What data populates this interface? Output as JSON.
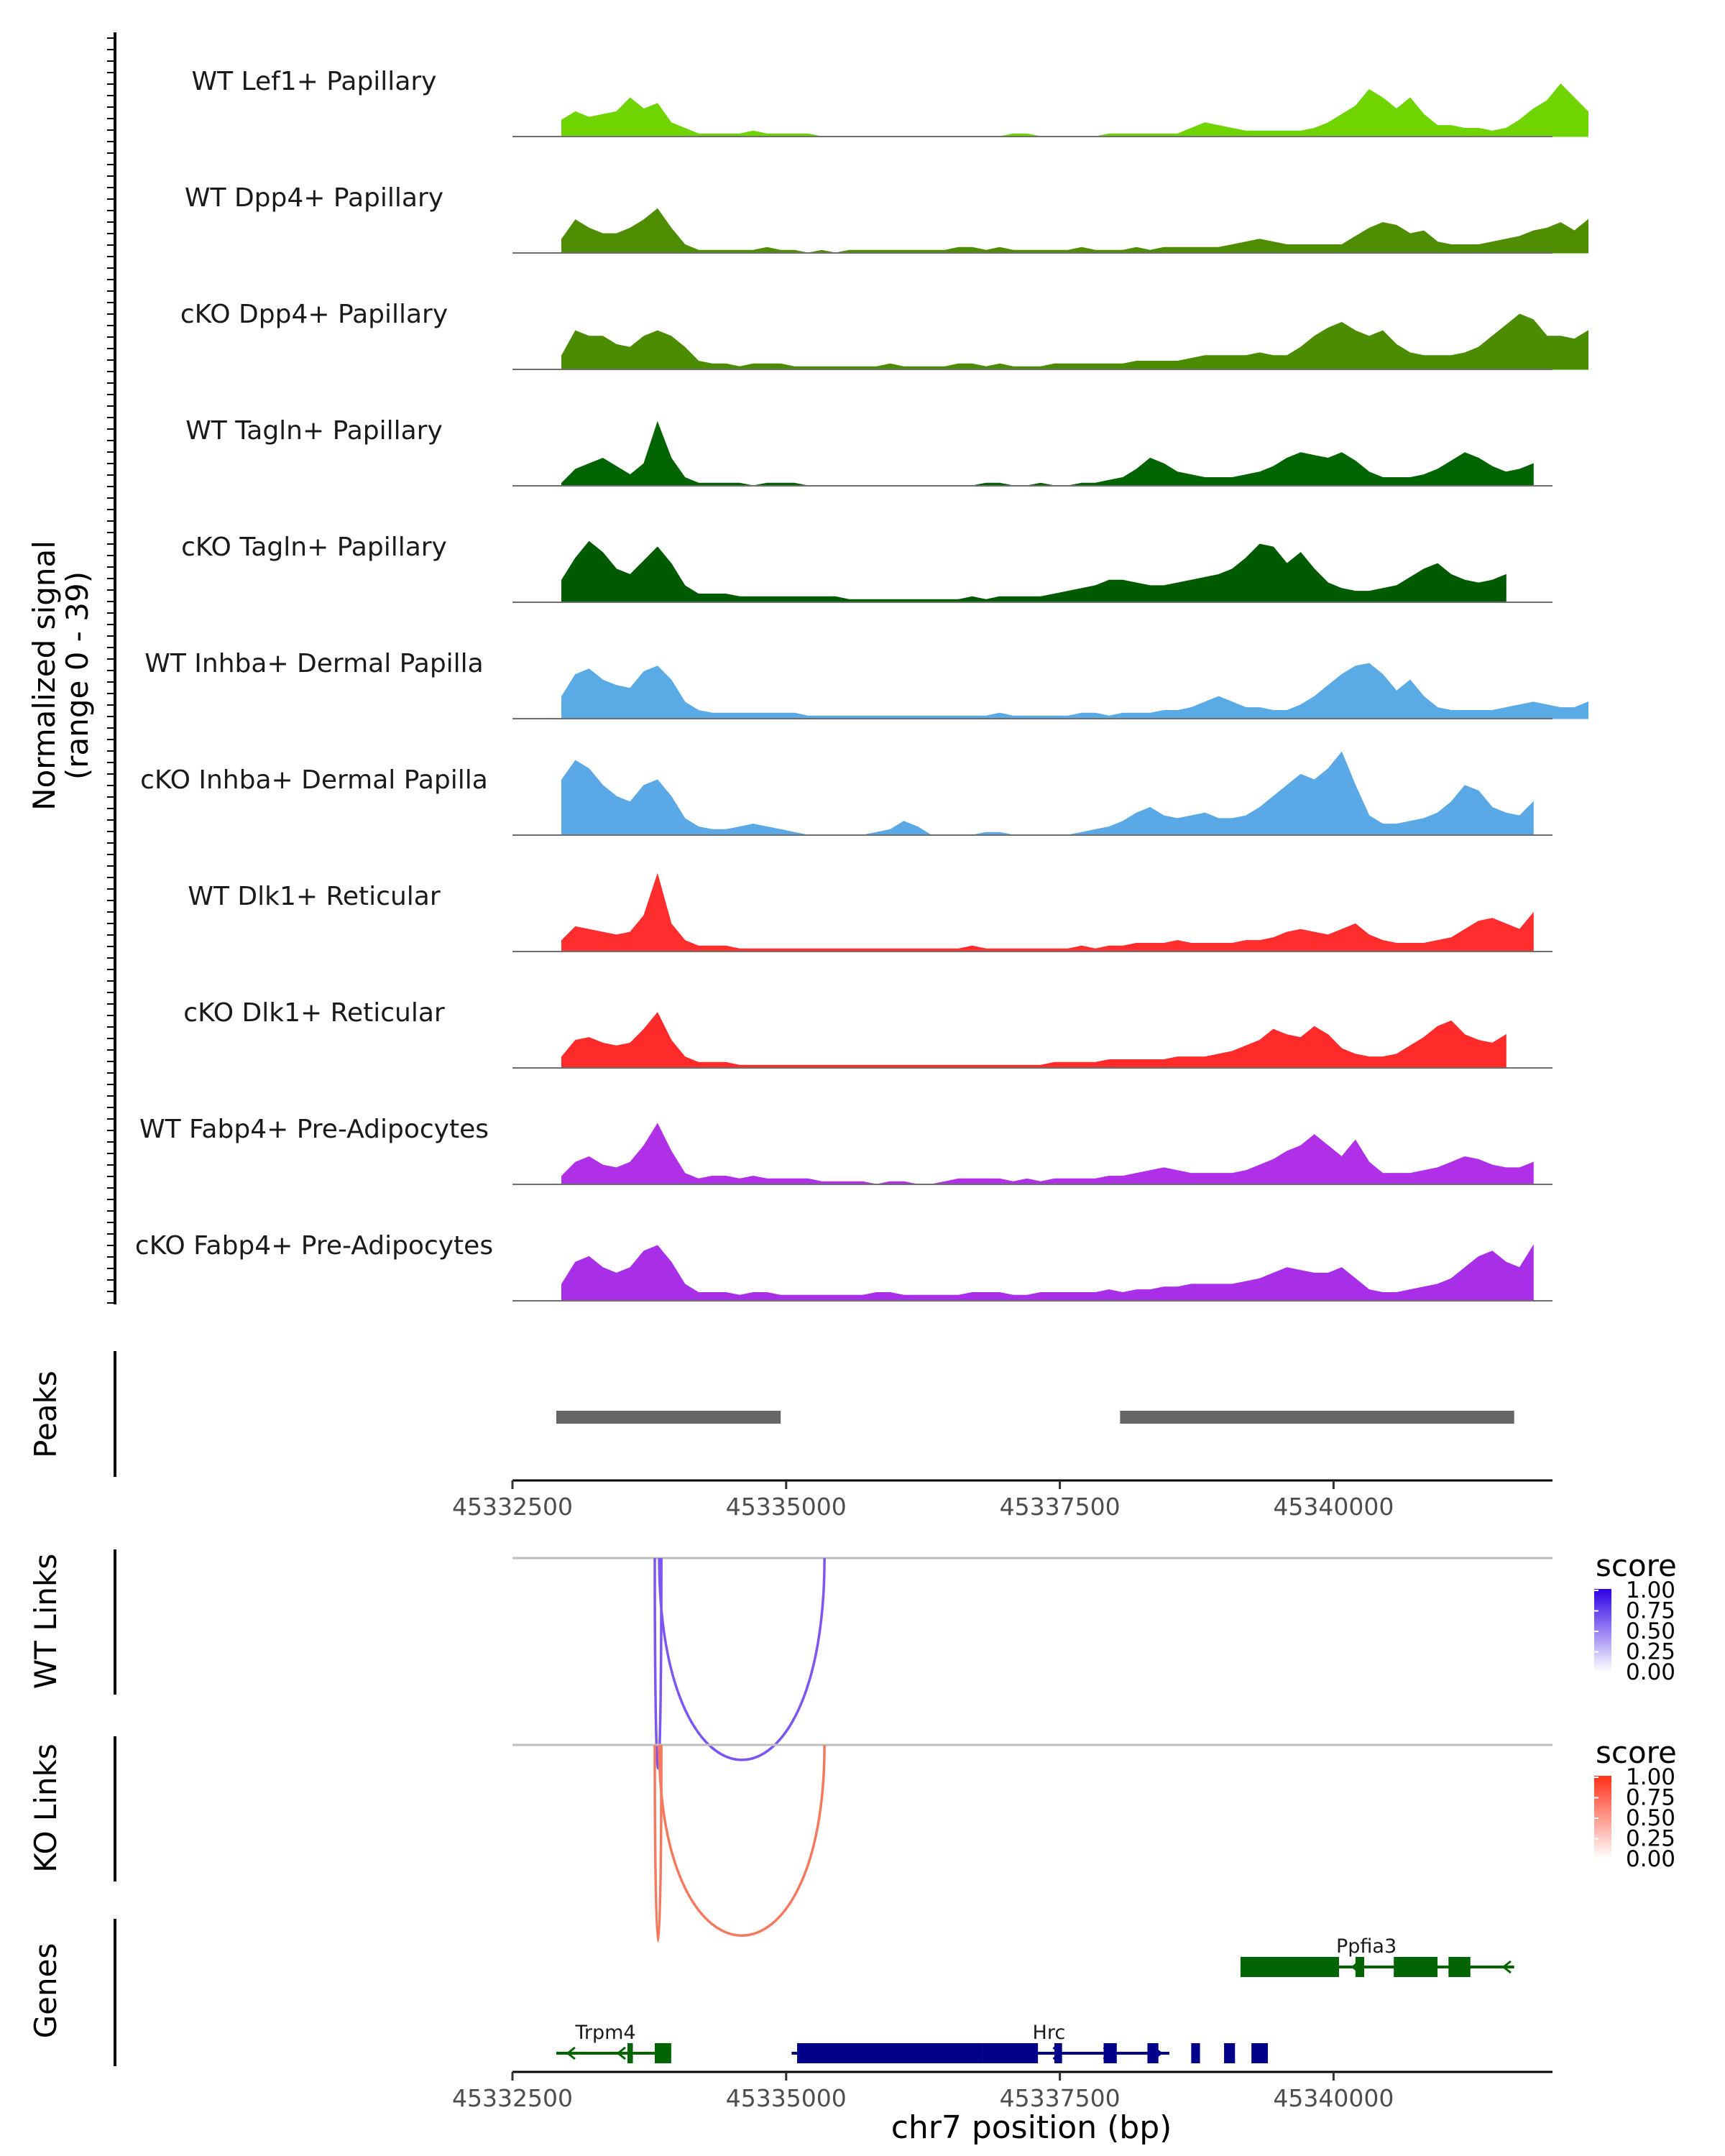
{
  "chart_data": {
    "type": "area",
    "title": "",
    "region": "chr7",
    "xlabel": "chr7 position (bp)",
    "xlim": [
      45332500,
      45342000
    ],
    "x_ticks": [
      45332500,
      45335000,
      45337500,
      45340000
    ],
    "coverage": {
      "ylabel": "Normalized signal",
      "ylabel_range": "(range 0 - 39)",
      "ylim": [
        0,
        39
      ],
      "x_start": 45332950,
      "x_step": 125,
      "tracks": [
        {
          "name": "WT Lef1+ Papillary",
          "color": "#6fd400",
          "values": [
            6,
            9,
            7,
            8,
            9,
            14,
            10,
            12,
            5,
            3,
            1,
            1,
            1,
            1,
            2,
            1,
            1,
            1,
            1,
            0,
            0,
            0,
            0,
            0,
            0,
            0,
            0,
            0,
            0,
            0,
            0,
            0,
            0,
            1,
            1,
            0,
            0,
            0,
            0,
            0,
            1,
            1,
            1,
            1,
            1,
            1,
            3,
            5,
            4,
            3,
            2,
            2,
            2,
            2,
            2,
            3,
            5,
            8,
            11,
            17,
            14,
            10,
            14,
            8,
            4,
            4,
            3,
            3,
            2,
            3,
            6,
            10,
            13,
            19,
            14,
            9
          ]
        },
        {
          "name": "WT Dpp4+ Papillary",
          "color": "#4f8d00",
          "values": [
            5,
            12,
            9,
            7,
            7,
            9,
            12,
            16,
            9,
            3,
            1,
            1,
            1,
            1,
            1,
            2,
            1,
            1,
            0,
            1,
            0,
            1,
            1,
            1,
            1,
            1,
            1,
            1,
            1,
            2,
            2,
            1,
            2,
            1,
            1,
            1,
            1,
            1,
            2,
            1,
            1,
            1,
            2,
            1,
            2,
            2,
            2,
            2,
            2,
            3,
            4,
            5,
            4,
            3,
            3,
            3,
            3,
            3,
            6,
            9,
            11,
            10,
            7,
            8,
            4,
            3,
            3,
            3,
            4,
            5,
            6,
            8,
            9,
            11,
            8,
            12
          ]
        },
        {
          "name": "cKO Dpp4+ Papillary",
          "color": "#4b8c00",
          "values": [
            5,
            14,
            12,
            12,
            9,
            8,
            12,
            14,
            12,
            8,
            3,
            2,
            2,
            1,
            2,
            2,
            2,
            1,
            1,
            1,
            1,
            1,
            1,
            1,
            2,
            1,
            1,
            1,
            1,
            2,
            2,
            1,
            2,
            1,
            1,
            1,
            2,
            2,
            2,
            2,
            2,
            2,
            3,
            3,
            3,
            3,
            4,
            5,
            5,
            5,
            5,
            6,
            5,
            5,
            8,
            12,
            15,
            17,
            14,
            12,
            14,
            9,
            6,
            5,
            5,
            5,
            6,
            8,
            12,
            16,
            20,
            18,
            12,
            12,
            11,
            14
          ]
        },
        {
          "name": "WT Tagln+ Papillary",
          "color": "#006400",
          "values": [
            1,
            6,
            8,
            10,
            7,
            4,
            8,
            23,
            10,
            3,
            1,
            1,
            1,
            1,
            0,
            1,
            1,
            1,
            0,
            0,
            0,
            0,
            0,
            0,
            0,
            0,
            0,
            0,
            0,
            0,
            0,
            1,
            1,
            0,
            0,
            1,
            0,
            0,
            1,
            1,
            2,
            3,
            6,
            10,
            8,
            5,
            4,
            3,
            3,
            3,
            4,
            5,
            7,
            10,
            12,
            11,
            10,
            12,
            9,
            5,
            3,
            3,
            3,
            4,
            6,
            9,
            12,
            10,
            7,
            5,
            6,
            8
          ]
        },
        {
          "name": "cKO Tagln+ Papillary",
          "color": "#005a00",
          "values": [
            8,
            16,
            22,
            18,
            12,
            10,
            15,
            20,
            14,
            6,
            3,
            3,
            3,
            2,
            2,
            2,
            2,
            2,
            2,
            2,
            2,
            1,
            1,
            1,
            1,
            1,
            1,
            1,
            1,
            1,
            2,
            1,
            2,
            2,
            2,
            2,
            3,
            4,
            5,
            6,
            8,
            8,
            7,
            6,
            6,
            7,
            8,
            9,
            10,
            12,
            16,
            21,
            20,
            14,
            18,
            12,
            7,
            5,
            4,
            4,
            5,
            6,
            9,
            12,
            14,
            10,
            8,
            7,
            8,
            10
          ]
        },
        {
          "name": "WT Inhba+ Dermal Papilla",
          "color": "#5aaae6",
          "values": [
            8,
            16,
            18,
            14,
            12,
            11,
            17,
            19,
            14,
            6,
            3,
            2,
            2,
            2,
            2,
            2,
            2,
            2,
            1,
            1,
            1,
            1,
            1,
            1,
            1,
            1,
            1,
            1,
            1,
            1,
            1,
            1,
            2,
            1,
            1,
            1,
            1,
            1,
            2,
            2,
            1,
            2,
            2,
            2,
            3,
            3,
            4,
            6,
            8,
            6,
            4,
            4,
            3,
            3,
            5,
            8,
            12,
            16,
            19,
            20,
            16,
            10,
            14,
            8,
            4,
            3,
            3,
            3,
            3,
            4,
            5,
            6,
            5,
            4,
            4,
            6
          ]
        },
        {
          "name": "cKO Inhba+ Dermal Papilla",
          "color": "#5aa8e6",
          "values": [
            20,
            27,
            24,
            18,
            14,
            12,
            18,
            20,
            14,
            6,
            3,
            2,
            2,
            3,
            4,
            3,
            2,
            1,
            0,
            0,
            0,
            0,
            0,
            1,
            2,
            5,
            3,
            0,
            0,
            0,
            0,
            1,
            1,
            0,
            0,
            0,
            0,
            0,
            1,
            2,
            3,
            5,
            8,
            10,
            7,
            6,
            7,
            8,
            6,
            6,
            7,
            10,
            14,
            18,
            22,
            20,
            24,
            30,
            18,
            7,
            4,
            4,
            5,
            6,
            8,
            12,
            18,
            16,
            10,
            8,
            7,
            12
          ]
        },
        {
          "name": "WT Dlk1+ Reticular",
          "color": "#ff2d2d",
          "values": [
            4,
            9,
            8,
            7,
            6,
            7,
            13,
            28,
            10,
            4,
            2,
            2,
            2,
            1,
            1,
            1,
            1,
            1,
            1,
            1,
            1,
            1,
            1,
            1,
            1,
            1,
            1,
            1,
            1,
            1,
            2,
            1,
            1,
            1,
            1,
            1,
            1,
            1,
            2,
            1,
            2,
            2,
            3,
            3,
            3,
            4,
            3,
            3,
            3,
            3,
            4,
            4,
            5,
            7,
            8,
            7,
            6,
            8,
            10,
            6,
            4,
            3,
            3,
            3,
            4,
            5,
            8,
            11,
            12,
            10,
            8,
            14
          ]
        },
        {
          "name": "cKO Dlk1+ Reticular",
          "color": "#ff2a2a",
          "values": [
            4,
            10,
            11,
            9,
            8,
            9,
            14,
            20,
            10,
            4,
            2,
            2,
            2,
            1,
            1,
            1,
            1,
            1,
            1,
            1,
            1,
            1,
            1,
            1,
            1,
            1,
            1,
            1,
            1,
            1,
            1,
            1,
            1,
            1,
            1,
            1,
            2,
            2,
            2,
            2,
            3,
            3,
            3,
            3,
            3,
            4,
            4,
            4,
            5,
            6,
            8,
            10,
            14,
            12,
            11,
            15,
            12,
            7,
            5,
            4,
            4,
            5,
            8,
            11,
            15,
            17,
            12,
            10,
            9,
            12
          ]
        },
        {
          "name": "WT Fabp4+ Pre-Adipocytes",
          "color": "#b030e8",
          "values": [
            3,
            8,
            10,
            7,
            6,
            8,
            14,
            22,
            12,
            4,
            2,
            3,
            3,
            2,
            3,
            2,
            2,
            2,
            2,
            1,
            1,
            1,
            1,
            0,
            1,
            1,
            0,
            0,
            1,
            2,
            2,
            2,
            2,
            1,
            2,
            1,
            2,
            2,
            2,
            2,
            3,
            3,
            4,
            5,
            6,
            5,
            4,
            4,
            4,
            4,
            5,
            7,
            9,
            12,
            14,
            18,
            14,
            10,
            16,
            8,
            4,
            4,
            4,
            5,
            6,
            8,
            10,
            9,
            7,
            6,
            6,
            8
          ]
        },
        {
          "name": "cKO Fabp4+ Pre-Adipocytes",
          "color": "#a82ee8",
          "values": [
            6,
            14,
            16,
            12,
            10,
            12,
            18,
            20,
            14,
            6,
            3,
            3,
            3,
            2,
            3,
            3,
            2,
            2,
            2,
            2,
            2,
            2,
            2,
            3,
            3,
            2,
            2,
            2,
            2,
            2,
            3,
            3,
            3,
            2,
            2,
            3,
            3,
            3,
            3,
            3,
            4,
            3,
            4,
            4,
            5,
            5,
            6,
            6,
            6,
            6,
            7,
            8,
            10,
            12,
            11,
            10,
            10,
            12,
            8,
            4,
            3,
            3,
            4,
            5,
            6,
            8,
            12,
            16,
            18,
            14,
            12,
            20
          ]
        }
      ]
    },
    "peaks": {
      "label": "Peaks",
      "ranges": [
        [
          45332900,
          45334950
        ],
        [
          45338050,
          45341650
        ]
      ]
    },
    "links": [
      {
        "label": "WT Links",
        "legend_title": "score",
        "color": "#7d55f0",
        "scale_top": "#2d00e6",
        "arcs": [
          {
            "start": 45333800,
            "end": 45333860,
            "score": 0.75
          },
          {
            "start": 45333840,
            "end": 45335350,
            "score": 0.72
          }
        ]
      },
      {
        "label": "KO Links",
        "legend_title": "score",
        "color": "#f5795f",
        "scale_top": "#ff3019",
        "arcs": [
          {
            "start": 45333800,
            "end": 45333860,
            "score": 0.7
          },
          {
            "start": 45333840,
            "end": 45335350,
            "score": 0.68
          }
        ]
      }
    ],
    "legend_ticks": [
      "1.00",
      "0.75",
      "0.50",
      "0.25",
      "0.00"
    ],
    "genes": {
      "label": "Genes",
      "items": [
        {
          "name": "Ppfia3",
          "strand": "-",
          "color": "#006400",
          "row": 0,
          "start": 45339150,
          "end": 45341650,
          "exons": [
            [
              45339150,
              45340050
            ],
            [
              45340200,
              45340280
            ],
            [
              45340550,
              45340950
            ],
            [
              45341050,
              45341250
            ]
          ]
        },
        {
          "name": "Trpm4",
          "strand": "-",
          "color": "#006400",
          "row": 1,
          "start": 45332900,
          "end": 45333950,
          "exons": [
            [
              45333550,
              45333600
            ],
            [
              45333800,
              45333950
            ]
          ]
        },
        {
          "name": "Hrc",
          "strand": "+",
          "color": "#00008b",
          "row": 1,
          "start": 45335050,
          "end": 45338500,
          "exons": [
            [
              45335100,
              45336800
            ],
            [
              45336800,
              45337300
            ],
            [
              45337450,
              45337520
            ],
            [
              45337900,
              45338020
            ],
            [
              45338300,
              45338400
            ],
            [
              45338700,
              45338780
            ],
            [
              45339000,
              45339100
            ],
            [
              45339250,
              45339400
            ]
          ]
        }
      ]
    }
  }
}
